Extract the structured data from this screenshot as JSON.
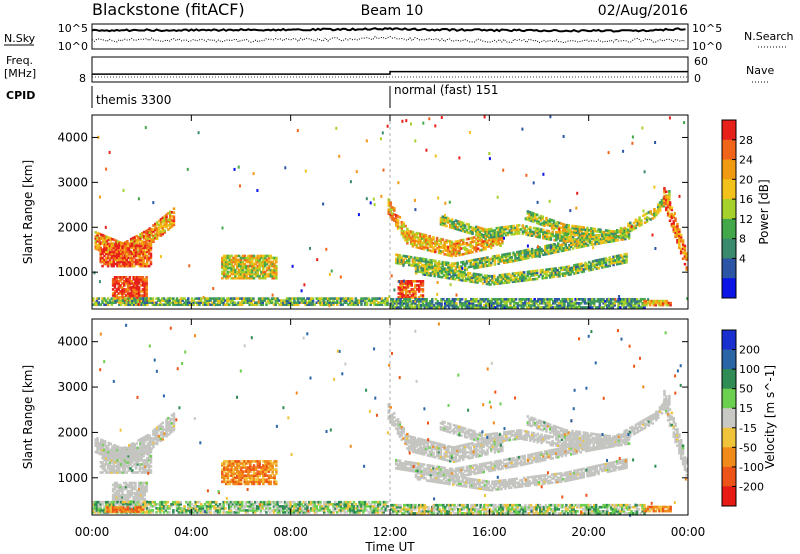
{
  "header": {
    "station": "Blackstone (fitACF)",
    "beam": "Beam 10",
    "date": "02/Aug/2016"
  },
  "panel_labels": {
    "nsky": "N.Sky",
    "freq_line1": "Freq.",
    "freq_line2": "[MHz]",
    "cpid": "CPID",
    "nsearch": "N.Search",
    "nave": "Nave"
  },
  "scale_ticks": {
    "nsky_top": "10^5",
    "nsky_bottom": "10^0",
    "nsearch_top": "10^5",
    "nsearch_bottom": "10^0",
    "freq_top": "",
    "freq_bottom": "8",
    "nave_top": "60",
    "nave_bottom": "0"
  },
  "cpid_segments": [
    {
      "label": "themis 3300",
      "start_hour": 0,
      "end_hour": 12
    },
    {
      "label": "normal (fast) 151",
      "start_hour": 12,
      "end_hour": 24
    }
  ],
  "time_axis": {
    "label": "Time UT",
    "ticks": [
      "00:00",
      "04:00",
      "08:00",
      "12:00",
      "16:00",
      "20:00",
      "00:00"
    ],
    "tick_hours": [
      0,
      4,
      8,
      12,
      16,
      20,
      24
    ]
  },
  "range_axis": {
    "label": "Slant Range [km]",
    "ticks": [
      "1000",
      "2000",
      "3000",
      "4000"
    ],
    "tick_values": [
      1000,
      2000,
      3000,
      4000
    ],
    "ylim": [
      180,
      4500
    ]
  },
  "power_scale": {
    "label": "Power [dB]",
    "ticks": [
      "4",
      "8",
      "12",
      "16",
      "20",
      "24",
      "28"
    ],
    "colors": [
      "#0a14e6",
      "#2d55a5",
      "#3a8a6e",
      "#43a84a",
      "#a6d02a",
      "#f2c21a",
      "#f09a12",
      "#f0651a",
      "#e8201a"
    ]
  },
  "velocity_scale": {
    "label": "Velocity [m s^-1]",
    "ticks": [
      "200",
      "100",
      "50",
      "15",
      "-15",
      "-50",
      "-100",
      "-200"
    ],
    "colors": [
      "#1a2fcf",
      "#2a66a6",
      "#2f8c55",
      "#6bd050",
      "#c8c8c4",
      "#f0c43a",
      "#f08a1a",
      "#ee5418",
      "#e81a14"
    ],
    "ground_scatter_color": "#c4c4c0"
  },
  "chart_data": [
    {
      "type": "line",
      "title": "N.Sky / N.Search",
      "series": [
        {
          "name": "N.Sky",
          "x": [
            0,
            2,
            4,
            6,
            8,
            10,
            12,
            14,
            16,
            18,
            20,
            22,
            24
          ],
          "y": [
            4.1,
            4.2,
            4.2,
            4.3,
            4.3,
            4.4,
            4.5,
            4.3,
            4.2,
            4.1,
            4.0,
            4.1,
            4.6
          ]
        },
        {
          "name": "N.Search",
          "x": [
            0,
            2,
            4,
            6,
            8,
            10,
            12,
            14,
            16,
            18,
            20,
            22,
            24
          ],
          "y": [
            1.6,
            1.8,
            1.7,
            1.6,
            1.8,
            1.9,
            2.3,
            1.7,
            1.6,
            1.5,
            1.6,
            1.7,
            1.5
          ]
        }
      ]
    },
    {
      "type": "line",
      "title": "Freq. / Nave",
      "series": [
        {
          "name": "Freq.",
          "x": [
            0,
            12,
            24
          ],
          "y": [
            8.0,
            8.0,
            8.0
          ]
        },
        {
          "name": "Nave",
          "x": [
            0,
            12,
            12,
            24
          ],
          "y": [
            16,
            16,
            23,
            23
          ]
        }
      ]
    },
    {
      "type": "heatmap",
      "title": "Power [dB]",
      "xlabel": "Time UT",
      "ylabel": "Slant Range [km]",
      "xlim": [
        0,
        24
      ],
      "ylim": [
        180,
        4500
      ],
      "zlim": [
        0,
        30
      ],
      "features": [
        {
          "kind": "arc",
          "pts": [
            [
              0.1,
              1700
            ],
            [
              1.2,
              1450
            ],
            [
              2.2,
              1750
            ],
            [
              3.3,
              2250
            ]
          ],
          "width": 380,
          "power": 22
        },
        {
          "kind": "patch",
          "t0": 0.3,
          "t1": 2.4,
          "r0": 1120,
          "r1": 1650,
          "power": 26
        },
        {
          "kind": "patch",
          "t0": 0.8,
          "t1": 2.2,
          "r0": 330,
          "r1": 900,
          "power": 28
        },
        {
          "kind": "patch",
          "t0": 5.2,
          "t1": 7.4,
          "r0": 850,
          "r1": 1350,
          "power": 18
        },
        {
          "kind": "patch",
          "t0": 0.0,
          "t1": 11.9,
          "r0": 260,
          "r1": 430,
          "power": 12
        },
        {
          "kind": "arc",
          "pts": [
            [
              11.9,
              2450
            ],
            [
              12.7,
              1750
            ],
            [
              14.5,
              1500
            ],
            [
              16.5,
              1750
            ]
          ],
          "width": 330,
          "power": 20
        },
        {
          "kind": "arc",
          "pts": [
            [
              12.2,
              1300
            ],
            [
              14.5,
              1100
            ],
            [
              17.0,
              1350
            ],
            [
              20.0,
              1700
            ],
            [
              21.6,
              1850
            ]
          ],
          "width": 220,
          "power": 14
        },
        {
          "kind": "arc",
          "pts": [
            [
              13.0,
              1050
            ],
            [
              16.0,
              800
            ],
            [
              19.0,
              1000
            ],
            [
              21.5,
              1300
            ]
          ],
          "width": 180,
          "power": 13
        },
        {
          "kind": "arc",
          "pts": [
            [
              14.0,
              2150
            ],
            [
              15.8,
              1850
            ],
            [
              17.2,
              1950
            ],
            [
              18.5,
              1800
            ],
            [
              20.0,
              1750
            ]
          ],
          "width": 200,
          "power": 15
        },
        {
          "kind": "arc",
          "pts": [
            [
              17.5,
              2250
            ],
            [
              19.0,
              1950
            ],
            [
              21.0,
              1800
            ],
            [
              22.6,
              2300
            ],
            [
              23.2,
              2700
            ]
          ],
          "width": 190,
          "power": 15
        },
        {
          "kind": "arc",
          "pts": [
            [
              23.0,
              2700
            ],
            [
              23.5,
              1900
            ],
            [
              23.9,
              1250
            ]
          ],
          "width": 420,
          "power": 24
        },
        {
          "kind": "patch",
          "t0": 12.3,
          "t1": 13.3,
          "r0": 420,
          "r1": 800,
          "power": 26
        },
        {
          "kind": "patch",
          "t0": 12.0,
          "t1": 22.2,
          "r0": 200,
          "r1": 380,
          "power": 10
        },
        {
          "kind": "patch",
          "t0": 22.2,
          "t1": 23.3,
          "r0": 250,
          "r1": 380,
          "power": 21
        }
      ]
    },
    {
      "type": "heatmap",
      "title": "Velocity [m s^-1]",
      "xlabel": "Time UT",
      "ylabel": "Slant Range [km]",
      "xlim": [
        0,
        24
      ],
      "ylim": [
        180,
        4500
      ],
      "zlim": [
        -200,
        200
      ],
      "features": [
        {
          "kind": "arc",
          "pts": [
            [
              0.1,
              1700
            ],
            [
              1.2,
              1450
            ],
            [
              2.2,
              1750
            ],
            [
              3.3,
              2250
            ]
          ],
          "width": 380,
          "velocity": 0,
          "ground": true
        },
        {
          "kind": "patch",
          "t0": 0.3,
          "t1": 2.4,
          "r0": 1100,
          "r1": 1650,
          "velocity": 0,
          "ground": true
        },
        {
          "kind": "patch",
          "t0": 0.8,
          "t1": 2.2,
          "r0": 330,
          "r1": 900,
          "velocity": 0,
          "ground": true
        },
        {
          "kind": "patch",
          "t0": 5.2,
          "t1": 7.4,
          "r0": 850,
          "r1": 1350,
          "velocity": -80
        },
        {
          "kind": "patch",
          "t0": 0.0,
          "t1": 11.9,
          "r0": 220,
          "r1": 460,
          "velocity": 25
        },
        {
          "kind": "patch",
          "t0": 0.5,
          "t1": 2.0,
          "r0": 240,
          "r1": 360,
          "velocity": -90
        },
        {
          "kind": "arc",
          "pts": [
            [
              11.9,
              2450
            ],
            [
              12.7,
              1750
            ],
            [
              14.5,
              1500
            ],
            [
              16.5,
              1750
            ]
          ],
          "width": 330,
          "velocity": 0,
          "ground": true
        },
        {
          "kind": "arc",
          "pts": [
            [
              12.2,
              1300
            ],
            [
              14.5,
              1100
            ],
            [
              17.0,
              1350
            ],
            [
              20.0,
              1700
            ],
            [
              21.6,
              1850
            ]
          ],
          "width": 220,
          "velocity": 0,
          "ground": true
        },
        {
          "kind": "arc",
          "pts": [
            [
              13.0,
              1050
            ],
            [
              16.0,
              800
            ],
            [
              19.0,
              1000
            ],
            [
              21.5,
              1300
            ]
          ],
          "width": 180,
          "velocity": 0,
          "ground": true
        },
        {
          "kind": "arc",
          "pts": [
            [
              14.0,
              2150
            ],
            [
              15.8,
              1850
            ],
            [
              17.2,
              1950
            ],
            [
              18.5,
              1800
            ],
            [
              20.0,
              1750
            ]
          ],
          "width": 200,
          "velocity": 0,
          "ground": true
        },
        {
          "kind": "arc",
          "pts": [
            [
              17.5,
              2250
            ],
            [
              19.0,
              1950
            ],
            [
              21.0,
              1800
            ],
            [
              22.6,
              2300
            ],
            [
              23.2,
              2700
            ]
          ],
          "width": 190,
          "velocity": 0,
          "ground": true
        },
        {
          "kind": "arc",
          "pts": [
            [
              23.0,
              2700
            ],
            [
              23.5,
              1900
            ],
            [
              23.9,
              1250
            ]
          ],
          "width": 420,
          "velocity": 0,
          "ground": true
        },
        {
          "kind": "patch",
          "t0": 12.0,
          "t1": 22.2,
          "r0": 200,
          "r1": 420,
          "velocity": 20
        },
        {
          "kind": "patch",
          "t0": 22.2,
          "t1": 23.3,
          "r0": 250,
          "r1": 380,
          "velocity": -70
        }
      ]
    }
  ]
}
